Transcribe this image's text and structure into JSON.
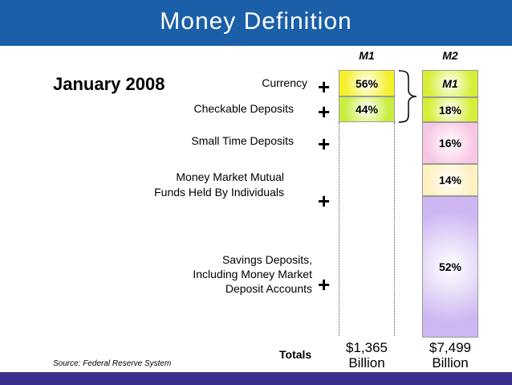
{
  "title": "Money Definition",
  "period": "January 2008",
  "components": [
    {
      "label": "Currency"
    },
    {
      "label": "Checkable Deposits"
    },
    {
      "label": "Small Time Deposits"
    },
    {
      "label": "Money Market Mutual",
      "label2": "Funds Held By Individuals"
    },
    {
      "label": "Savings Deposits,",
      "label2": "Including Money Market",
      "label3": "Deposit Accounts"
    }
  ],
  "plus_sign": "+",
  "m1": {
    "header": "M1",
    "cells": [
      {
        "value": "56%",
        "color": "#f5f02a"
      },
      {
        "value": "44%",
        "color": "#c8ee40"
      }
    ],
    "total": "$1,365",
    "unit": "Billion"
  },
  "m2": {
    "header": "M2",
    "cells": [
      {
        "value": "M1",
        "color": "#d6ee36"
      },
      {
        "value": "18%",
        "color": "#d6ee36"
      },
      {
        "value": "16%",
        "color": "#f7c6e2"
      },
      {
        "value": "14%",
        "color": "#fff0c0"
      },
      {
        "value": "52%",
        "color": "#cdb6f2"
      }
    ],
    "total": "$7,499",
    "unit": "Billion"
  },
  "totals_label": "Totals",
  "source": "Source: Federal Reserve System",
  "colors": {
    "header": "#1b5fa8",
    "footer": "#3a2e8c"
  }
}
